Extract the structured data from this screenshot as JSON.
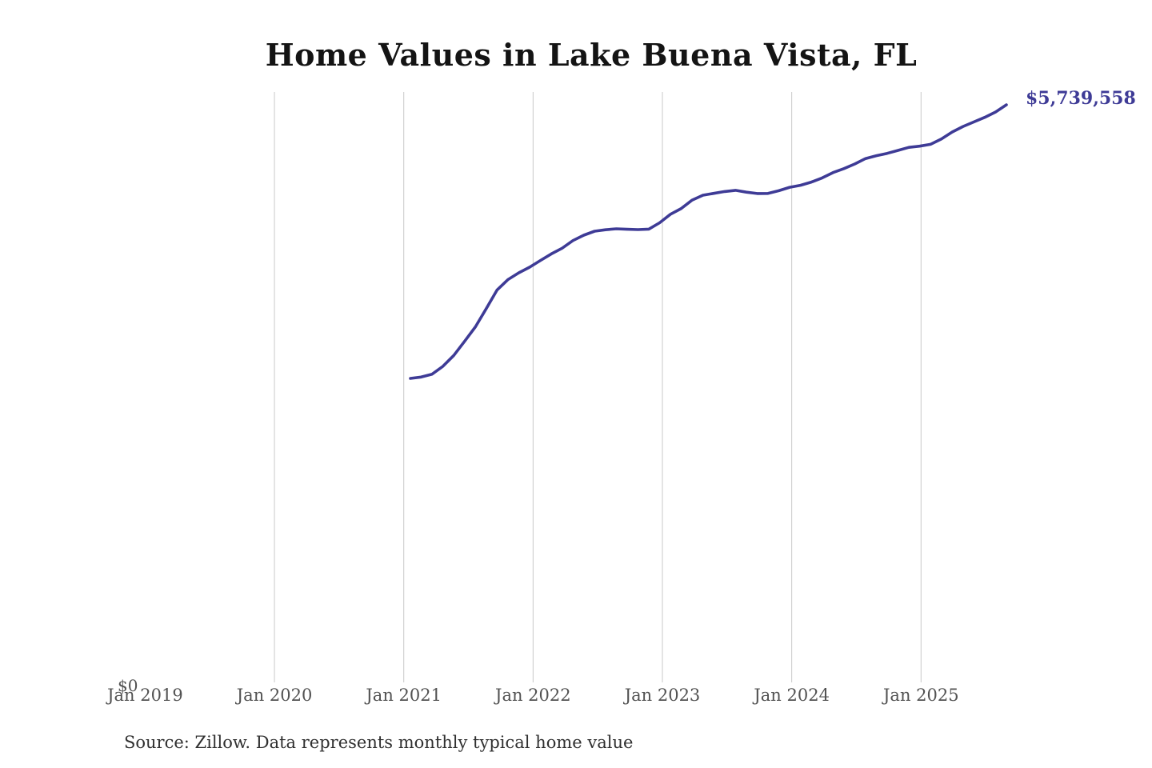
{
  "chart": {
    "title": "Home Values in Lake Buena Vista, FL",
    "end_label": "$5,739,558",
    "y_zero_label": "$0",
    "source_note": "Source: Zillow. Data represents monthly typical home value",
    "colors": {
      "line": "#3e3b96",
      "end_label": "#3e3b96",
      "grid": "#c9c9c9",
      "title": "#141414",
      "tick_label": "#525252",
      "source": "#303030",
      "background": "#ffffff"
    }
  },
  "chart_data": {
    "type": "line",
    "title": "Home Values in Lake Buena Vista, FL",
    "series_name": "Monthly typical home value ($)",
    "x": [
      "Jan 2021",
      "Feb 2021",
      "Mar 2021",
      "Apr 2021",
      "May 2021",
      "Jun 2021",
      "Jul 2021",
      "Aug 2021",
      "Sep 2021",
      "Oct 2021",
      "Nov 2021",
      "Dec 2021",
      "Jan 2022",
      "Feb 2022",
      "Mar 2022",
      "Apr 2022",
      "May 2022",
      "Jun 2022",
      "Jul 2022",
      "Aug 2022",
      "Sep 2022",
      "Oct 2022",
      "Nov 2022",
      "Dec 2022",
      "Jan 2023",
      "Feb 2023",
      "Mar 2023",
      "Apr 2023",
      "May 2023",
      "Jun 2023",
      "Jul 2023",
      "Aug 2023",
      "Sep 2023",
      "Oct 2023",
      "Nov 2023",
      "Dec 2023",
      "Jan 2024",
      "Feb 2024",
      "Mar 2024",
      "Apr 2024",
      "May 2024",
      "Jun 2024",
      "Jul 2024",
      "Aug 2024",
      "Sep 2024",
      "Oct 2024",
      "Nov 2024",
      "Dec 2024",
      "Jan 2025",
      "Feb 2025",
      "Mar 2025",
      "Apr 2025",
      "May 2025",
      "Jun 2025",
      "Jul 2025",
      "Aug 2025"
    ],
    "values": [
      3028000,
      3042000,
      3070000,
      3148000,
      3256000,
      3395000,
      3540000,
      3720000,
      3905000,
      4007000,
      4075000,
      4130000,
      4197000,
      4262000,
      4318000,
      4394000,
      4447000,
      4487000,
      4501000,
      4511000,
      4506000,
      4503000,
      4508000,
      4570000,
      4655000,
      4712000,
      4795000,
      4844000,
      4862000,
      4880000,
      4892000,
      4874000,
      4860000,
      4861000,
      4888000,
      4922000,
      4942000,
      4974000,
      5015000,
      5068000,
      5107000,
      5153000,
      5207000,
      5235000,
      5258000,
      5288000,
      5318000,
      5330000,
      5348000,
      5400000,
      5470000,
      5525000,
      5570000,
      5615000,
      5668000,
      5739558
    ],
    "x_tick_labels": [
      "Jan 2019",
      "Jan 2020",
      "Jan 2021",
      "Jan 2022",
      "Jan 2023",
      "Jan 2024",
      "Jan 2025"
    ],
    "gridlines_at": [
      "Jan 2020",
      "Jan 2021",
      "Jan 2022",
      "Jan 2023",
      "Jan 2024",
      "Jan 2025"
    ],
    "ylim": [
      0,
      5867000
    ],
    "y_axis_visible_labels": [
      "$0"
    ],
    "grid": "vertical-only",
    "legend": "none",
    "end_annotation": "$5,739,558"
  }
}
